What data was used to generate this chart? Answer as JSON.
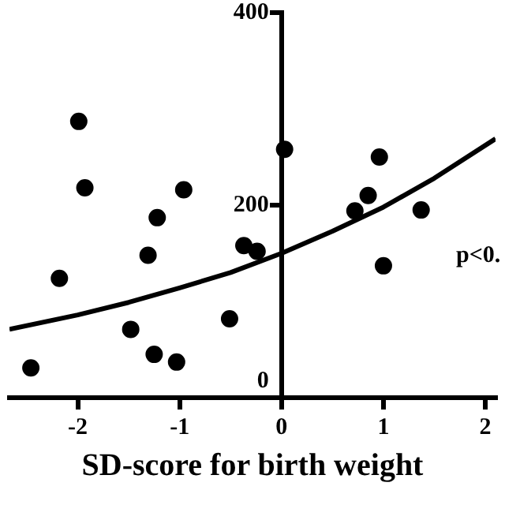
{
  "chart_data": {
    "type": "scatter",
    "xlabel": "SD-score for birth weight",
    "xlim": [
      -2.67,
      2.1
    ],
    "ylim": [
      0,
      400
    ],
    "xticks": [
      -2,
      -1,
      0,
      1,
      2
    ],
    "yticks": [
      0,
      200,
      400
    ],
    "grid": false,
    "legend": false,
    "marker": "circle",
    "annotations": [
      "p<0."
    ],
    "series": [
      {
        "color": "#000000",
        "x": [
          -1.99,
          -1.93,
          -0.96,
          -1.22,
          -2.18,
          -1.31,
          -0.37,
          -0.24,
          0.03,
          0.96,
          0.85,
          0.72,
          1.37,
          1.0,
          -1.48,
          -1.25,
          -1.03,
          -0.51,
          -2.46
        ],
        "values": [
          287,
          218,
          216,
          187,
          124,
          148,
          158,
          152,
          258,
          250,
          210,
          194,
          195,
          137,
          71,
          45,
          37,
          82,
          31
        ]
      },
      {
        "type": "line",
        "color": "#000000",
        "marker": "none",
        "x": [
          -2.67,
          -2,
          -1.5,
          -1,
          -0.5,
          0,
          0.5,
          1,
          1.5,
          2.1
        ],
        "values": [
          71,
          86,
          99,
          114,
          130,
          150,
          173,
          198,
          228,
          269
        ]
      }
    ]
  }
}
